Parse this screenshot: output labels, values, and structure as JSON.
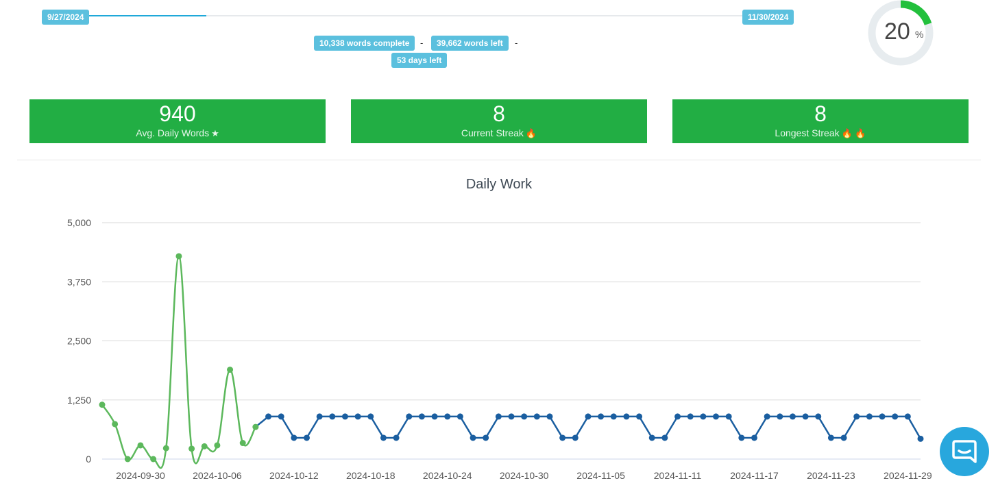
{
  "progress": {
    "start_date": "9/27/2024",
    "end_date": "11/30/2024",
    "fraction_elapsed": 0.2,
    "words_complete": "10,338 words complete",
    "words_left": "39,662 words left",
    "days_left": "53 days left",
    "separator": "-",
    "percent": "20",
    "percent_unit": "%",
    "percent_value": 20
  },
  "stats": [
    {
      "value": "940",
      "label": "Avg. Daily Words",
      "icon": "star-icon",
      "glyph": "★"
    },
    {
      "value": "8",
      "label": "Current Streak",
      "icon": "flame-icon",
      "glyph": "🔥"
    },
    {
      "value": "8",
      "label": "Longest Streak",
      "icon": "flame-icon",
      "glyph": "🔥 🔥"
    }
  ],
  "colors": {
    "card": "#22ae44",
    "actual_series": "#5cb85c",
    "projected_series": "#1a5ea0",
    "tag": "#5bc0de",
    "timeline": "#1fa8d9",
    "chat": "#28a7dd"
  },
  "chart_data": {
    "type": "line",
    "title": "Daily Work",
    "xlabel": "",
    "ylabel": "",
    "ylim": [
      0,
      5000
    ],
    "yticks": [
      0,
      1250,
      2500,
      3750,
      5000
    ],
    "ytick_labels": [
      "0",
      "1,250",
      "2,500",
      "3,750",
      "5,000"
    ],
    "xticks": [
      "2024-09-30",
      "2024-10-06",
      "2024-10-12",
      "2024-10-18",
      "2024-10-24",
      "2024-10-30",
      "2024-11-05",
      "2024-11-11",
      "2024-11-17",
      "2024-11-23",
      "2024-11-29"
    ],
    "x_start": "2024-09-27",
    "x_end": "2024-11-30",
    "grid": true,
    "legend": "none",
    "series": [
      {
        "color": "#5cb85c",
        "x": [
          "2024-09-27",
          "2024-09-28",
          "2024-09-29",
          "2024-09-30",
          "2024-10-01",
          "2024-10-02",
          "2024-10-03",
          "2024-10-04",
          "2024-10-05",
          "2024-10-06",
          "2024-10-07",
          "2024-10-08",
          "2024-10-09"
        ],
        "values": [
          1150,
          740,
          0,
          290,
          0,
          230,
          4290,
          220,
          270,
          290,
          1890,
          340,
          680
        ]
      },
      {
        "color": "#1a5ea0",
        "x": [
          "2024-10-10",
          "2024-10-11",
          "2024-10-12",
          "2024-10-13",
          "2024-10-14",
          "2024-10-15",
          "2024-10-16",
          "2024-10-17",
          "2024-10-18",
          "2024-10-19",
          "2024-10-20",
          "2024-10-21",
          "2024-10-22",
          "2024-10-23",
          "2024-10-24",
          "2024-10-25",
          "2024-10-26",
          "2024-10-27",
          "2024-10-28",
          "2024-10-29",
          "2024-10-30",
          "2024-10-31",
          "2024-11-01",
          "2024-11-02",
          "2024-11-03",
          "2024-11-04",
          "2024-11-05",
          "2024-11-06",
          "2024-11-07",
          "2024-11-08",
          "2024-11-09",
          "2024-11-10",
          "2024-11-11",
          "2024-11-12",
          "2024-11-13",
          "2024-11-14",
          "2024-11-15",
          "2024-11-16",
          "2024-11-17",
          "2024-11-18",
          "2024-11-19",
          "2024-11-20",
          "2024-11-21",
          "2024-11-22",
          "2024-11-23",
          "2024-11-24",
          "2024-11-25",
          "2024-11-26",
          "2024-11-27",
          "2024-11-28",
          "2024-11-29",
          "2024-11-30"
        ],
        "values": [
          900,
          900,
          450,
          450,
          900,
          900,
          900,
          900,
          900,
          450,
          450,
          900,
          900,
          900,
          900,
          900,
          450,
          450,
          900,
          900,
          900,
          900,
          900,
          450,
          450,
          900,
          900,
          900,
          900,
          900,
          450,
          450,
          900,
          900,
          900,
          900,
          900,
          450,
          450,
          900,
          900,
          900,
          900,
          900,
          450,
          450,
          900,
          900,
          900,
          900,
          900,
          430
        ]
      }
    ]
  }
}
